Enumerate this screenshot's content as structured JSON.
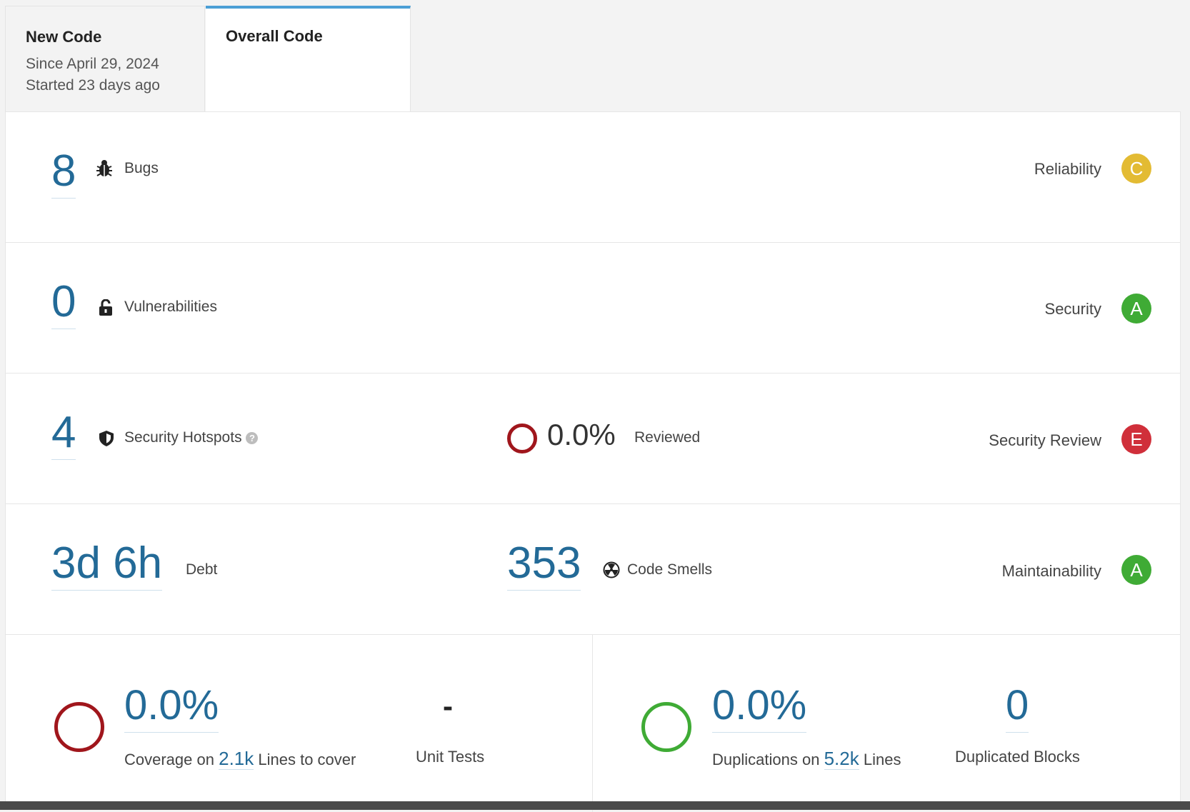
{
  "tabs": {
    "new_code": {
      "title": "New Code",
      "since": "Since April 29, 2024",
      "started": "Started 23 days ago"
    },
    "overall_code": {
      "title": "Overall Code"
    }
  },
  "reliability": {
    "value": "8",
    "label": "Bugs",
    "rating_label": "Reliability",
    "grade": "C",
    "grade_color": "#e3bb33"
  },
  "security": {
    "value": "0",
    "label": "Vulnerabilities",
    "rating_label": "Security",
    "grade": "A",
    "grade_color": "#3fab35"
  },
  "hotspots": {
    "value": "4",
    "label": "Security Hotspots",
    "help": "?",
    "reviewed_value": "0.0%",
    "reviewed_label": "Reviewed",
    "reviewed_ring_color": "#a0161c",
    "rating_label": "Security Review",
    "grade": "E",
    "grade_color": "#d02f3a"
  },
  "maintainability": {
    "debt_value": "3d 6h",
    "debt_label": "Debt",
    "smells_value": "353",
    "smells_label": "Code Smells",
    "rating_label": "Maintainability",
    "grade": "A",
    "grade_color": "#3fab35"
  },
  "coverage": {
    "value": "0.0%",
    "prefix": "Coverage on",
    "lines_value": "2.1k",
    "suffix": "Lines to cover",
    "ring_color": "#a0161c",
    "unit_tests_value": "-",
    "unit_tests_label": "Unit Tests"
  },
  "duplications": {
    "value": "0.0%",
    "prefix": "Duplications on",
    "lines_value": "5.2k",
    "suffix": "Lines",
    "ring_color": "#3fab35",
    "blocks_value": "0",
    "blocks_label": "Duplicated Blocks"
  }
}
